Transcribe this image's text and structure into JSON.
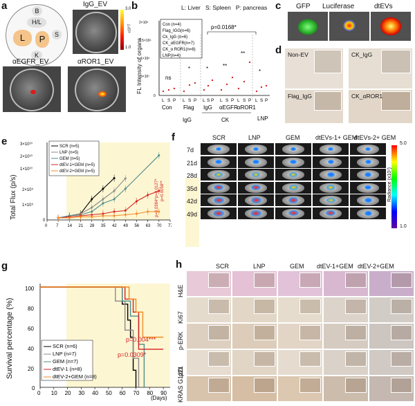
{
  "panels": {
    "a": {
      "letter": "a",
      "titles": [
        "IgG_EV",
        "αEGFR_EV",
        "αROR1_EV"
      ],
      "organ_labels": [
        "B",
        "H/L",
        "S",
        "L",
        "P",
        "K"
      ],
      "colorbar": {
        "max": "3.0",
        "min": "1.0",
        "unit": "x10^7"
      }
    },
    "b": {
      "letter": "b",
      "header": "L: Liver   S: Spleen   P: pancreas",
      "ylabel": "FL Intensity of organs",
      "legend": [
        "Con (n=4)",
        "Flag_IGG(n=6)",
        "Ck_IgG (n=6)",
        "CK_αEGFR(n=7)",
        "CK_α ROR1(n=8)",
        "LNP(n=4)"
      ],
      "yticks": [
        "2×10⁸",
        "1.5×10⁸",
        "1×10⁸",
        "5×10⁷",
        "0"
      ],
      "pvalue": "p=0.0168*",
      "groups": [
        "Con",
        "Flag",
        "IgG",
        "αEGFR",
        "αROR1",
        "LNP"
      ],
      "sub": "LSP",
      "row2": [
        "IgG",
        "CK"
      ],
      "sig": [
        "ns",
        "*",
        "*",
        "**",
        "**",
        "*"
      ]
    },
    "c": {
      "letter": "c",
      "titles": [
        "GFP",
        "Luciferase",
        "dtEVs"
      ]
    },
    "d": {
      "letter": "d",
      "titles": [
        "Non-EV",
        "CK_IgG",
        "Flag_IgG",
        "CK_αROR1"
      ]
    },
    "e": {
      "letter": "e",
      "ylabel": "Total Flux (p/s)",
      "legend": [
        "SCR (n=5)",
        "LNP (n=5)",
        "GEM (n=5)",
        "dtEV-1+GEM (n=5)",
        "dtEV-2+GEM (n=5)"
      ],
      "yticks": [
        "3×10¹⁰",
        "2×10¹⁰",
        "1×10¹⁰",
        "2×10⁹",
        "1×10⁹",
        "0"
      ],
      "xticks": [
        "0",
        "7",
        "14",
        "21",
        "28",
        "35",
        "42",
        "49",
        "56",
        "63",
        "70",
        "77"
      ],
      "pvalues": [
        "p=0.0127*",
        "p=0.0058**",
        "p=0.0384*"
      ]
    },
    "f": {
      "letter": "f",
      "columns": [
        "SCR",
        "LNP",
        "GEM",
        "dtEVs-1+ GEM",
        "dtEVs-2+ GEM"
      ],
      "rows": [
        "7d",
        "21d",
        "28d",
        "35d",
        "42d",
        "49d"
      ],
      "colorbar": {
        "max": "5.0",
        "min": "1.0",
        "label": "Radiance (x10⁷)"
      }
    },
    "g": {
      "letter": "g",
      "ylabel": "Survival percentage (%)",
      "xlabel": "(Days)",
      "legend": [
        "SCR (n=6)",
        "LNP (n=7)",
        "GEM (n=7)",
        "dtEV-1 (n=8)",
        "dtEV-2+GEM (n=8)"
      ],
      "yticks": [
        "100",
        "80",
        "60",
        "40",
        "20",
        "0"
      ],
      "xticks": [
        "0",
        "10",
        "20",
        "30",
        "40",
        "50",
        "60",
        "70",
        "80",
        "90"
      ],
      "pvalues": [
        "p=0.004***",
        "p=0.0309*"
      ]
    },
    "h": {
      "letter": "h",
      "columns": [
        "SCR",
        "LNP",
        "GEM",
        "dtEV-1+GEM",
        "dtEV-2+GEM"
      ],
      "rows": [
        "H&E",
        "Ki67",
        "p-ERK",
        "p21",
        "KRAS G12D"
      ]
    }
  },
  "colors": {
    "SCR": "#000000",
    "LNP": "#8a8a8a",
    "GEM": "#4e8b8b",
    "dtEV1": "#d42020",
    "dtEV2": "#f08a24",
    "yellowbg": "#fdf6d3",
    "sig_red": "#d42020"
  },
  "chart_data": [
    {
      "type": "line",
      "title": "",
      "xlabel": "",
      "ylabel": "Total Flux (p/s)",
      "x": [
        7,
        14,
        21,
        28,
        35,
        42,
        49,
        56,
        63,
        70
      ],
      "series": [
        {
          "name": "SCR (n=5)",
          "values": [
            100000000.0,
            200000000.0,
            300000000.0,
            1000000000.0,
            1500000000.0,
            2200000000.0,
            null,
            null,
            null,
            null
          ]
        },
        {
          "name": "LNP (n=5)",
          "values": [
            100000000.0,
            200000000.0,
            300000000.0,
            600000000.0,
            1000000000.0,
            1400000000.0,
            2000000000.0,
            null,
            null,
            null
          ]
        },
        {
          "name": "GEM (n=5)",
          "values": [
            100000000.0,
            200000000.0,
            250000000.0,
            400000000.0,
            800000000.0,
            1000000000.0,
            1500000000.0,
            null,
            null,
            20000000000.0
          ]
        },
        {
          "name": "dtEV-1+GEM (n=5)",
          "values": [
            100000000.0,
            150000000.0,
            200000000.0,
            250000000.0,
            300000000.0,
            400000000.0,
            450000000.0,
            900000000.0,
            1200000000.0,
            1400000000.0
          ]
        },
        {
          "name": "dtEV-2+GEM (n=5)",
          "values": [
            100000000.0,
            100000000.0,
            150000000.0,
            150000000.0,
            200000000.0,
            200000000.0,
            250000000.0,
            300000000.0,
            400000000.0,
            400000000.0
          ]
        }
      ]
    },
    {
      "type": "line",
      "title": "",
      "xlabel": "(Days)",
      "ylabel": "Survival percentage (%)",
      "ylim": [
        0,
        100
      ],
      "series": [
        {
          "name": "SCR (n=6)",
          "x": [
            0,
            55,
            60,
            64,
            66,
            68,
            70
          ],
          "values": [
            100,
            100,
            83,
            67,
            50,
            17,
            0
          ]
        },
        {
          "name": "LNP (n=7)",
          "x": [
            0,
            40,
            55,
            62,
            68,
            72
          ],
          "values": [
            100,
            100,
            86,
            57,
            29,
            0
          ]
        },
        {
          "name": "GEM (n=7)",
          "x": [
            0,
            50,
            60,
            66,
            72,
            76
          ],
          "values": [
            100,
            100,
            86,
            71,
            43,
            0
          ]
        },
        {
          "name": "dtEV-1 (n=8)",
          "x": [
            0,
            55,
            62,
            68,
            72,
            90
          ],
          "values": [
            100,
            100,
            88,
            75,
            38,
            38
          ]
        },
        {
          "name": "dtEV-2+GEM (n=8)",
          "x": [
            0,
            60,
            65,
            70,
            75,
            90
          ],
          "values": [
            100,
            100,
            88,
            75,
            50,
            50
          ]
        }
      ]
    }
  ]
}
